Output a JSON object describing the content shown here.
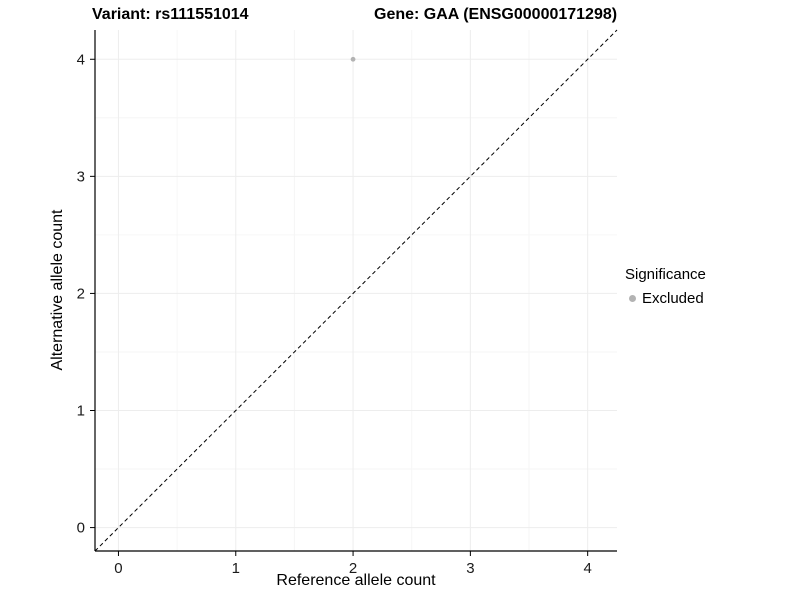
{
  "chart_data": {
    "type": "scatter",
    "title_left": "Variant: rs111551014",
    "title_right": "Gene: GAA (ENSG00000171298)",
    "xlabel": "Reference allele count",
    "ylabel": "Alternative allele count",
    "xlim": [
      -0.2,
      4.25
    ],
    "ylim": [
      -0.2,
      4.25
    ],
    "x_ticks": [
      0,
      1,
      2,
      3,
      4
    ],
    "y_ticks": [
      0,
      1,
      2,
      3,
      4
    ],
    "grid": "faint major and minor gridlines",
    "points": [
      {
        "x": 2,
        "y": 4,
        "series": "Excluded"
      }
    ],
    "series": [
      {
        "name": "Excluded",
        "color": "#b3b3b3"
      }
    ],
    "reference_line": {
      "kind": "y=x",
      "style": "dashed",
      "color": "#000000"
    },
    "legend": {
      "title": "Significance",
      "position": "right",
      "items": [
        {
          "label": "Excluded",
          "color": "#b3b3b3"
        }
      ]
    }
  },
  "colors": {
    "background": "#ffffff",
    "grid_major": "#ededed",
    "grid_minor": "#f6f6f6",
    "axis": "#000000",
    "tick_text": "#1a1a1a"
  }
}
